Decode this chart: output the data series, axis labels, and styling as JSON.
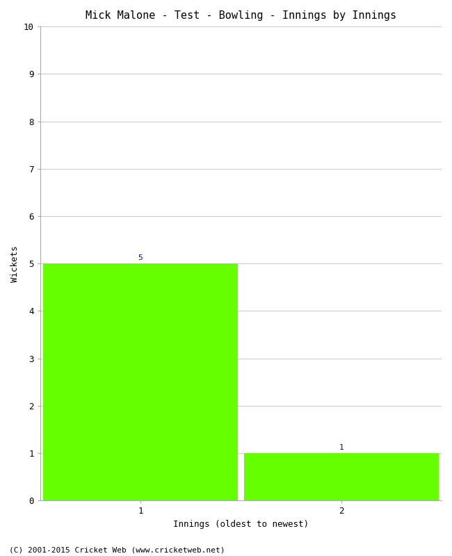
{
  "title": "Mick Malone - Test - Bowling - Innings by Innings",
  "xlabel": "Innings (oldest to newest)",
  "ylabel": "Wickets",
  "categories": [
    "1",
    "2"
  ],
  "values": [
    5,
    1
  ],
  "bar_color": "#66ff00",
  "ylim": [
    0,
    10
  ],
  "yticks": [
    0,
    1,
    2,
    3,
    4,
    5,
    6,
    7,
    8,
    9,
    10
  ],
  "bar_labels": [
    "5",
    "1"
  ],
  "footnote": "(C) 2001-2015 Cricket Web (www.cricketweb.net)",
  "background_color": "#ffffff",
  "grid_color": "#cccccc",
  "title_color": "#000000",
  "label_color": "#000000",
  "bar_label_color": "#0000cc",
  "footnote_color": "#000000",
  "font_family": "monospace",
  "bar_width": 0.97,
  "xlim": [
    0.5,
    2.5
  ]
}
